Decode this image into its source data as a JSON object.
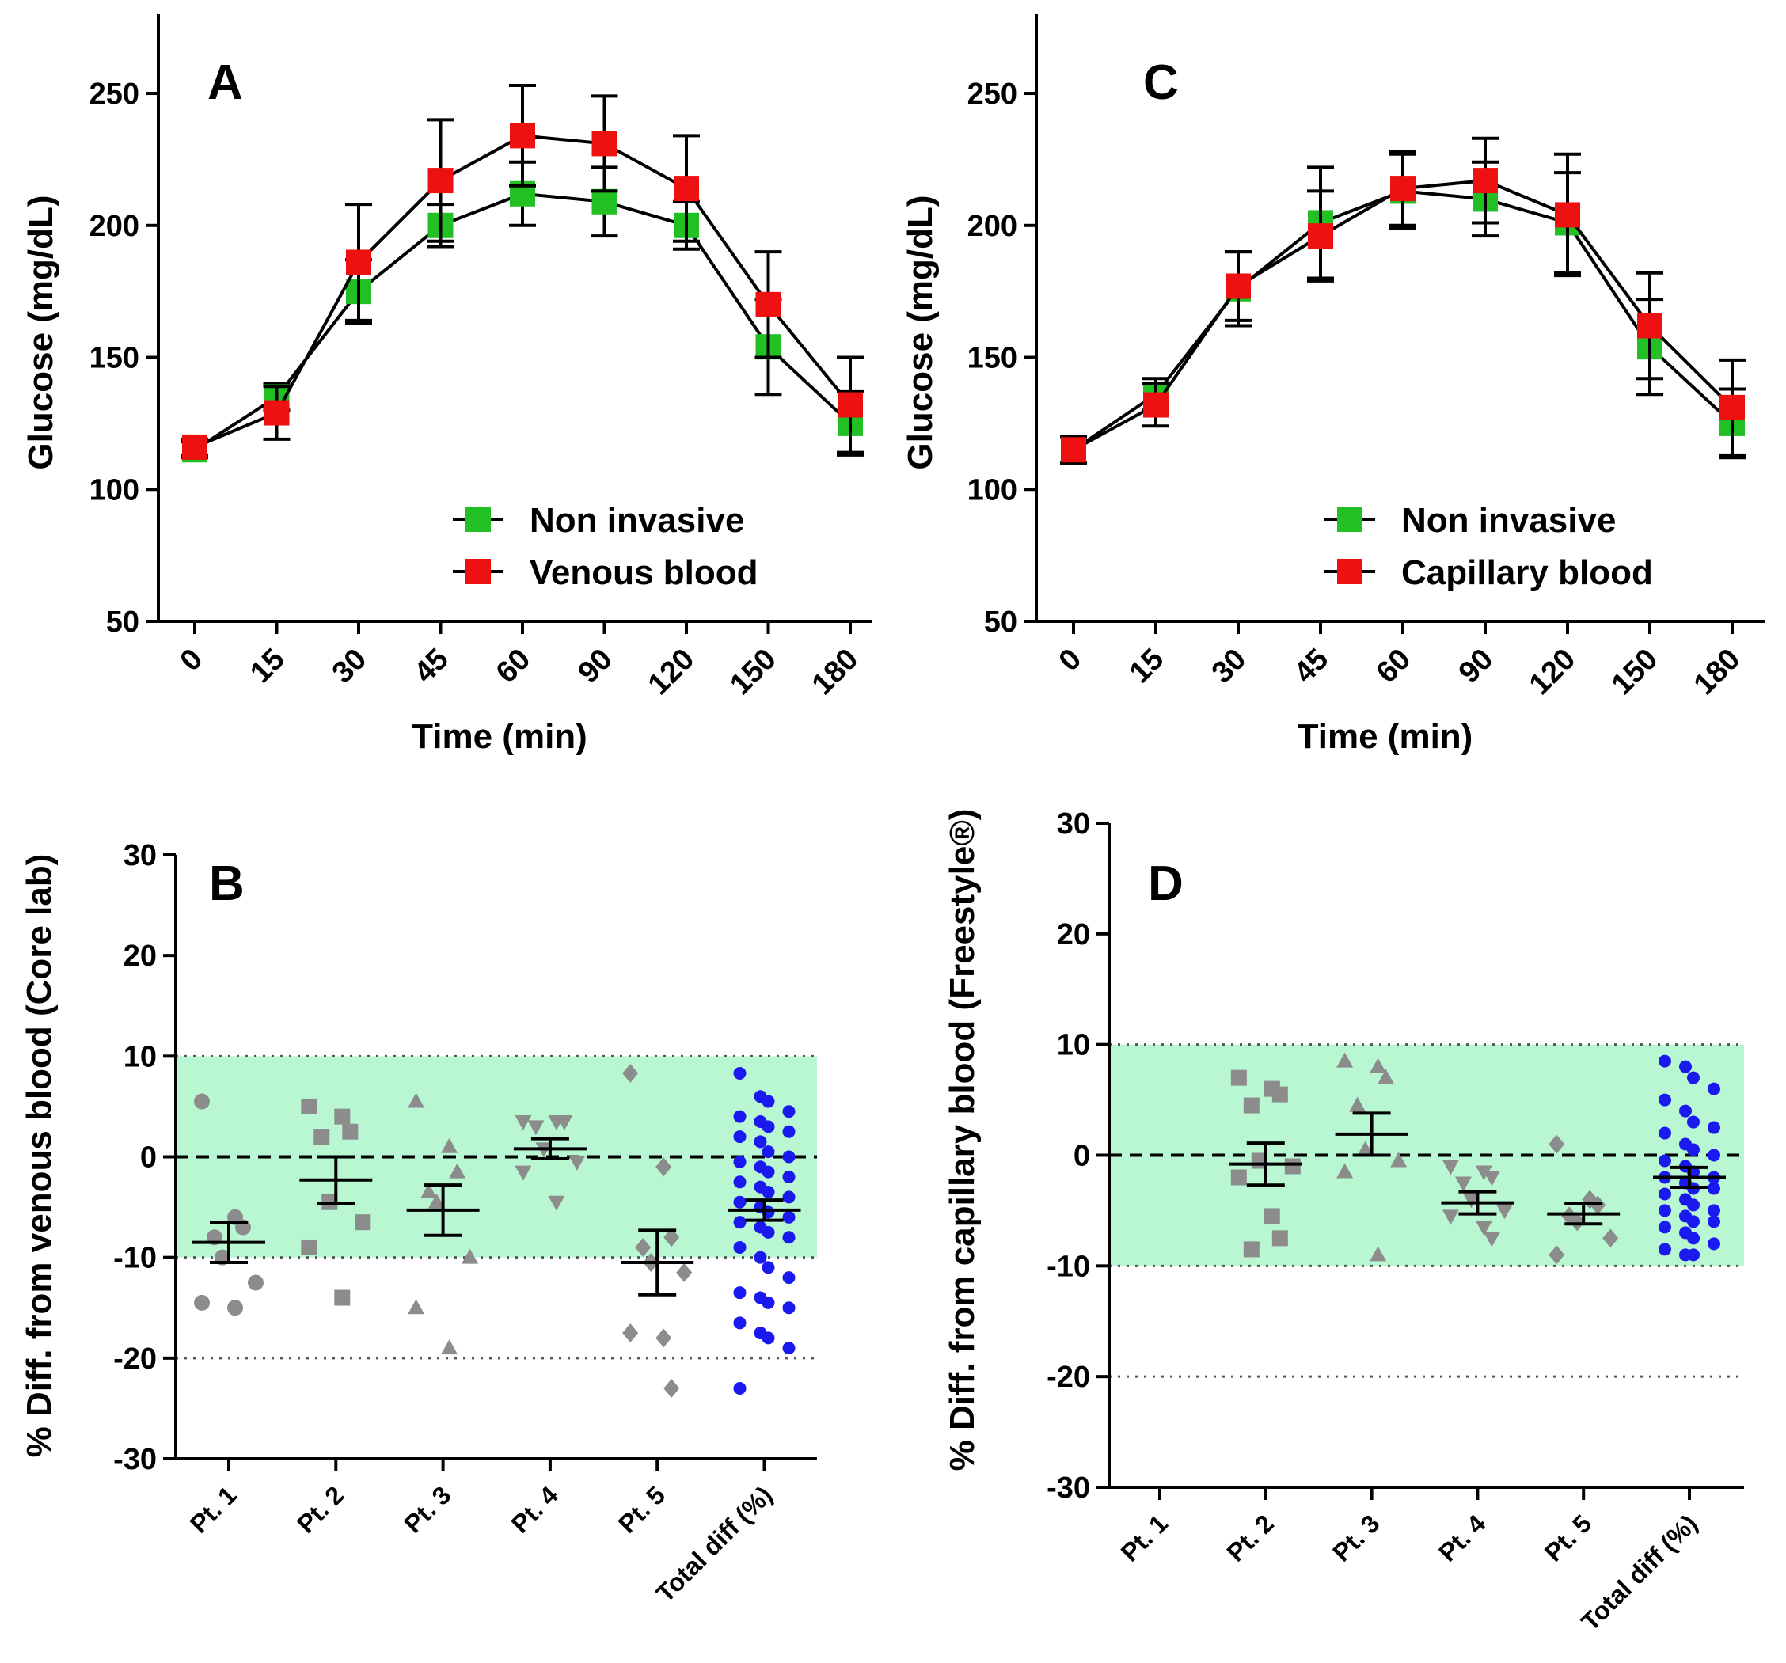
{
  "figure": {
    "style": {
      "point_gray": "#8c8c8c",
      "total_blue": "#1a1aee",
      "band_green": "#b9f7d3",
      "green": "#22c022",
      "red": "#ee1111"
    }
  },
  "chart_data": [
    {
      "panel": "A",
      "type": "line",
      "categories": [
        "0",
        "15",
        "30",
        "45",
        "60",
        "90",
        "120",
        "150",
        "180"
      ],
      "series": [
        {
          "name": "Non invasive",
          "color": "#22c022",
          "values": [
            115,
            135,
            175,
            200,
            212,
            209,
            200,
            154,
            125
          ],
          "err": [
            3,
            5,
            12,
            8,
            12,
            13,
            9,
            18,
            12
          ]
        },
        {
          "name": "Venous blood",
          "color": "#ee1111",
          "values": [
            116,
            129,
            186,
            217,
            234,
            231,
            214,
            170,
            132
          ],
          "err": [
            3,
            10,
            22,
            23,
            19,
            18,
            20,
            20,
            18
          ]
        }
      ],
      "xlabel": "Time (min)",
      "ylabel": "Glucose (mg/dL)",
      "ylim": [
        50,
        280
      ],
      "yticks": [
        "50",
        "100",
        "150",
        "200",
        "250"
      ],
      "legend": [
        "Non invasive",
        "Venous blood"
      ],
      "legend_position": "bottom-right"
    },
    {
      "panel": "C",
      "type": "line",
      "categories": [
        "0",
        "15",
        "30",
        "45",
        "60",
        "90",
        "120",
        "150",
        "180"
      ],
      "series": [
        {
          "name": "Non invasive",
          "color": "#22c022",
          "values": [
            115,
            136,
            176,
            201,
            213,
            210,
            201,
            154,
            125
          ],
          "err": [
            5,
            6,
            14,
            21,
            14,
            14,
            19,
            18,
            13
          ]
        },
        {
          "name": "Capillary blood",
          "color": "#ee1111",
          "values": [
            115,
            132,
            177,
            196,
            214,
            217,
            204,
            162,
            131
          ],
          "err": [
            5,
            8,
            13,
            17,
            14,
            16,
            23,
            20,
            18
          ]
        }
      ],
      "xlabel": "Time (min)",
      "ylabel": "Glucose (mg/dL)",
      "ylim": [
        50,
        280
      ],
      "yticks": [
        "50",
        "100",
        "150",
        "200",
        "250"
      ],
      "legend": [
        "Non invasive",
        "Capillary blood"
      ],
      "legend_position": "bottom-right"
    },
    {
      "panel": "B",
      "type": "scatter",
      "categories": [
        "Pt. 1",
        "Pt. 2",
        "Pt. 3",
        "Pt. 4",
        "Pt. 5",
        "Total diff (%)"
      ],
      "ylabel": "% Diff. from venous blood (Core lab)",
      "ylim": [
        -30,
        30
      ],
      "yticks": [
        "-30",
        "-20",
        "-10",
        "0",
        "10",
        "20",
        "30"
      ],
      "band": [
        -10,
        10
      ],
      "dotted_lines": [
        10,
        -10,
        -20
      ],
      "dashed_line": 0,
      "groups": [
        {
          "category": "Pt. 1",
          "marker": "circle",
          "mean": -8.5,
          "sem": 2.0,
          "points": [
            5.5,
            -6,
            -7,
            -8,
            -10,
            -12.5,
            -14.5,
            -15
          ]
        },
        {
          "category": "Pt. 2",
          "marker": "square",
          "mean": -2.3,
          "sem": 2.3,
          "points": [
            5,
            4,
            2.5,
            2,
            -4.5,
            -6.5,
            -9,
            -14
          ]
        },
        {
          "category": "Pt. 3",
          "marker": "triangle",
          "mean": -5.3,
          "sem": 2.5,
          "points": [
            5.5,
            1,
            -1.5,
            -3.5,
            -4.5,
            -10,
            -15,
            -19
          ]
        },
        {
          "category": "Pt. 4",
          "marker": "triangle-down",
          "mean": 0.8,
          "sem": 1.0,
          "points": [
            3.5,
            3.5,
            3.5,
            3,
            0.8,
            -0.5,
            -1.5,
            -4.5
          ]
        },
        {
          "category": "Pt. 5",
          "marker": "diamond",
          "mean": -10.5,
          "sem": 3.2,
          "points": [
            8.3,
            -1,
            -8,
            -9,
            -10.5,
            -11.5,
            -17.5,
            -18,
            -23
          ]
        },
        {
          "category": "Total diff (%)",
          "marker": "circle",
          "color": "blue",
          "mean": -5.3,
          "sem": 1.0,
          "points": [
            8.3,
            6,
            5.5,
            4.5,
            4,
            3.5,
            3,
            2.5,
            2,
            1.5,
            0.5,
            0,
            -0.5,
            -1,
            -1.5,
            -2,
            -2.5,
            -3,
            -3.5,
            -4,
            -4.5,
            -5,
            -5.5,
            -6,
            -6.5,
            -7,
            -7.5,
            -8,
            -9,
            -10,
            -11,
            -12,
            -13.5,
            -14,
            -14.5,
            -15,
            -16.5,
            -17.5,
            -18,
            -19,
            -23
          ]
        }
      ]
    },
    {
      "panel": "D",
      "type": "scatter",
      "categories": [
        "Pt. 1",
        "Pt. 2",
        "Pt. 3",
        "Pt. 4",
        "Pt. 5",
        "Total diff (%)"
      ],
      "ylabel": "% Diff. from capillary blood (Freestyle®)",
      "ylim": [
        -30,
        30
      ],
      "yticks": [
        "-30",
        "-20",
        "-10",
        "0",
        "10",
        "20",
        "30"
      ],
      "band": [
        -10,
        10
      ],
      "dotted_lines": [
        10,
        -10,
        -20
      ],
      "dashed_line": 0,
      "groups": [
        {
          "category": "Pt. 1",
          "marker": "none",
          "mean": null,
          "sem": null,
          "points": []
        },
        {
          "category": "Pt. 2",
          "marker": "square",
          "mean": -0.8,
          "sem": 1.9,
          "points": [
            7,
            6,
            5.5,
            4.5,
            -0.5,
            -1,
            -2,
            -5.5,
            -7.5,
            -8.5
          ]
        },
        {
          "category": "Pt. 3",
          "marker": "triangle",
          "mean": 1.9,
          "sem": 1.9,
          "points": [
            8.5,
            8,
            7,
            4.5,
            0.5,
            -0.5,
            -1.5,
            -9
          ]
        },
        {
          "category": "Pt. 4",
          "marker": "triangle-down",
          "mean": -4.3,
          "sem": 1.0,
          "points": [
            -1,
            -1.5,
            -2,
            -2.5,
            -4,
            -5,
            -5.5,
            -6.5,
            -7.5
          ]
        },
        {
          "category": "Pt. 5",
          "marker": "diamond",
          "mean": -5.3,
          "sem": 0.9,
          "points": [
            1,
            -4,
            -4.5,
            -5.5,
            -6,
            -7.5,
            -9
          ]
        },
        {
          "category": "Total diff (%)",
          "marker": "circle",
          "color": "blue",
          "mean": -2.0,
          "sem": 0.9,
          "points": [
            8.5,
            8,
            7,
            6,
            5,
            4,
            3,
            2.5,
            2,
            1,
            0.5,
            0,
            -0.5,
            -1,
            -1.5,
            -2,
            -2,
            -2.5,
            -3,
            -3,
            -3.5,
            -4,
            -4.5,
            -5,
            -5,
            -5.5,
            -6,
            -6,
            -6.5,
            -7,
            -7.5,
            -8,
            -8.5,
            -9,
            -9
          ]
        }
      ]
    }
  ]
}
